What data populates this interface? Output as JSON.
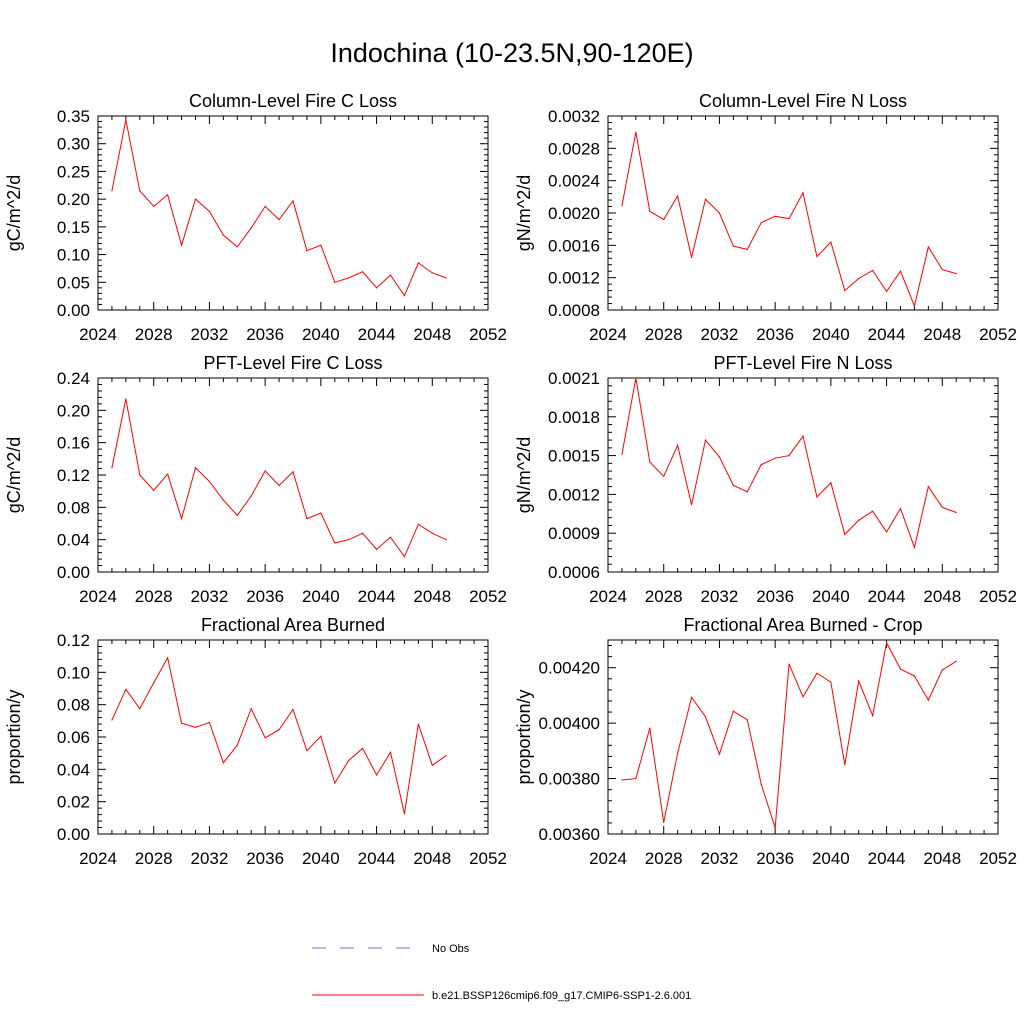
{
  "title": "Indochina (10-23.5N,90-120E)",
  "colors": {
    "model": "#ff0000",
    "obs": "#7777cc",
    "axis": "#000000"
  },
  "legend": {
    "obs_label": "No Obs",
    "model_label": "b.e21.BSSP126cmip6.f09_g17.CMIP6-SSP1-2.6.001"
  },
  "chart_data": [
    {
      "type": "line",
      "title": "Column-Level Fire C Loss",
      "xlabel": "",
      "ylabel": "gC/m^2/d",
      "xlim": [
        2024,
        2052
      ],
      "ylim": [
        0,
        0.35
      ],
      "x_ticks": [
        "2024",
        "2028",
        "2032",
        "2036",
        "2040",
        "2044",
        "2048",
        "2052"
      ],
      "y_ticks": [
        "0.00",
        "0.05",
        "0.10",
        "0.15",
        "0.20",
        "0.25",
        "0.30",
        "0.35"
      ],
      "y_tick_values": [
        0,
        0.05,
        0.1,
        0.15,
        0.2,
        0.25,
        0.3,
        0.35
      ],
      "x": [
        2025,
        2026,
        2027,
        2028,
        2029,
        2030,
        2031,
        2032,
        2033,
        2034,
        2035,
        2036,
        2037,
        2038,
        2039,
        2040,
        2041,
        2042,
        2043,
        2044,
        2045,
        2046,
        2047,
        2048,
        2049
      ],
      "series": [
        {
          "values": [
            0.215,
            0.343,
            0.215,
            0.187,
            0.208,
            0.117,
            0.2,
            0.178,
            0.135,
            0.114,
            0.148,
            0.187,
            0.163,
            0.197,
            0.107,
            0.117,
            0.05,
            0.058,
            0.069,
            0.04,
            0.063,
            0.026,
            0.085,
            0.067,
            0.058
          ]
        }
      ]
    },
    {
      "type": "line",
      "title": "Column-Level Fire N Loss",
      "xlabel": "",
      "ylabel": "gN/m^2/d",
      "xlim": [
        2024,
        2052
      ],
      "ylim": [
        0.0008,
        0.0032
      ],
      "x_ticks": [
        "2024",
        "2028",
        "2032",
        "2036",
        "2040",
        "2044",
        "2048",
        "2052"
      ],
      "y_ticks": [
        "0.0008",
        "0.0012",
        "0.0016",
        "0.0020",
        "0.0024",
        "0.0028",
        "0.0032"
      ],
      "y_tick_values": [
        0.0008,
        0.0012,
        0.0016,
        0.002,
        0.0024,
        0.0028,
        0.0032
      ],
      "x": [
        2025,
        2026,
        2027,
        2028,
        2029,
        2030,
        2031,
        2032,
        2033,
        2034,
        2035,
        2036,
        2037,
        2038,
        2039,
        2040,
        2041,
        2042,
        2043,
        2044,
        2045,
        2046,
        2047,
        2048,
        2049
      ],
      "series": [
        {
          "values": [
            0.00209,
            0.003,
            0.00202,
            0.00192,
            0.00221,
            0.00145,
            0.00217,
            0.002,
            0.00159,
            0.00155,
            0.00188,
            0.00196,
            0.00193,
            0.00225,
            0.00146,
            0.00164,
            0.00104,
            0.00119,
            0.00129,
            0.00103,
            0.00128,
            0.00085,
            0.00158,
            0.0013,
            0.00125
          ]
        }
      ]
    },
    {
      "type": "line",
      "title": "PFT-Level Fire C Loss",
      "xlabel": "",
      "ylabel": "gC/m^2/d",
      "xlim": [
        2024,
        2052
      ],
      "ylim": [
        0,
        0.24
      ],
      "x_ticks": [
        "2024",
        "2028",
        "2032",
        "2036",
        "2040",
        "2044",
        "2048",
        "2052"
      ],
      "y_ticks": [
        "0.00",
        "0.04",
        "0.08",
        "0.12",
        "0.16",
        "0.20",
        "0.24"
      ],
      "y_tick_values": [
        0,
        0.04,
        0.08,
        0.12,
        0.16,
        0.2,
        0.24
      ],
      "x": [
        2025,
        2026,
        2027,
        2028,
        2029,
        2030,
        2031,
        2032,
        2033,
        2034,
        2035,
        2036,
        2037,
        2038,
        2039,
        2040,
        2041,
        2042,
        2043,
        2044,
        2045,
        2046,
        2047,
        2048,
        2049
      ],
      "series": [
        {
          "values": [
            0.129,
            0.214,
            0.12,
            0.101,
            0.121,
            0.066,
            0.129,
            0.112,
            0.089,
            0.07,
            0.094,
            0.125,
            0.107,
            0.124,
            0.066,
            0.073,
            0.036,
            0.04,
            0.048,
            0.028,
            0.043,
            0.019,
            0.059,
            0.048,
            0.04
          ]
        }
      ]
    },
    {
      "type": "line",
      "title": "PFT-Level Fire N Loss",
      "xlabel": "",
      "ylabel": "gN/m^2/d",
      "xlim": [
        2024,
        2052
      ],
      "ylim": [
        0.0006,
        0.0021
      ],
      "x_ticks": [
        "2024",
        "2028",
        "2032",
        "2036",
        "2040",
        "2044",
        "2048",
        "2052"
      ],
      "y_ticks": [
        "0.0006",
        "0.0009",
        "0.0012",
        "0.0015",
        "0.0018",
        "0.0021"
      ],
      "y_tick_values": [
        0.0006,
        0.0009,
        0.0012,
        0.0015,
        0.0018,
        0.0021
      ],
      "x": [
        2025,
        2026,
        2027,
        2028,
        2029,
        2030,
        2031,
        2032,
        2033,
        2034,
        2035,
        2036,
        2037,
        2038,
        2039,
        2040,
        2041,
        2042,
        2043,
        2044,
        2045,
        2046,
        2047,
        2048,
        2049
      ],
      "series": [
        {
          "values": [
            0.00151,
            0.0021,
            0.00145,
            0.00134,
            0.00158,
            0.00112,
            0.00162,
            0.00149,
            0.00127,
            0.00122,
            0.00143,
            0.00148,
            0.0015,
            0.00165,
            0.00118,
            0.00129,
            0.00089,
            0.001,
            0.00107,
            0.00091,
            0.00109,
            0.00079,
            0.00126,
            0.0011,
            0.00106
          ]
        }
      ]
    },
    {
      "type": "line",
      "title": "Fractional Area Burned",
      "xlabel": "",
      "ylabel": "proportion/y",
      "xlim": [
        2024,
        2052
      ],
      "ylim": [
        0,
        0.12
      ],
      "x_ticks": [
        "2024",
        "2028",
        "2032",
        "2036",
        "2040",
        "2044",
        "2048",
        "2052"
      ],
      "y_ticks": [
        "0.00",
        "0.02",
        "0.04",
        "0.06",
        "0.08",
        "0.10",
        "0.12"
      ],
      "y_tick_values": [
        0,
        0.02,
        0.04,
        0.06,
        0.08,
        0.1,
        0.12
      ],
      "x": [
        2025,
        2026,
        2027,
        2028,
        2029,
        2030,
        2031,
        2032,
        2033,
        2034,
        2035,
        2036,
        2037,
        2038,
        2039,
        2040,
        2041,
        2042,
        2043,
        2044,
        2045,
        2046,
        2047,
        2048,
        2049
      ],
      "series": [
        {
          "values": [
            0.0705,
            0.0895,
            0.0775,
            0.0935,
            0.109,
            0.0685,
            0.066,
            0.069,
            0.044,
            0.055,
            0.0775,
            0.0595,
            0.0645,
            0.077,
            0.0515,
            0.0605,
            0.0315,
            0.0455,
            0.053,
            0.0365,
            0.0505,
            0.0125,
            0.068,
            0.0425,
            0.0485
          ]
        }
      ]
    },
    {
      "type": "line",
      "title": "Fractional Area Burned - Crop",
      "xlabel": "",
      "ylabel": "proportion/y",
      "xlim": [
        2024,
        2052
      ],
      "ylim": [
        0.0036,
        0.0043
      ],
      "x_ticks": [
        "2024",
        "2028",
        "2032",
        "2036",
        "2040",
        "2044",
        "2048",
        "2052"
      ],
      "y_ticks": [
        "0.00360",
        "0.00380",
        "0.00400",
        "0.00420"
      ],
      "y_tick_values": [
        0.0036,
        0.0038,
        0.004,
        0.0042
      ],
      "x": [
        2025,
        2026,
        2027,
        2028,
        2029,
        2030,
        2031,
        2032,
        2033,
        2034,
        2035,
        2036,
        2037,
        2038,
        2039,
        2040,
        2041,
        2042,
        2043,
        2044,
        2045,
        2046,
        2047,
        2048,
        2049
      ],
      "series": [
        {
          "values": [
            0.003795,
            0.0038,
            0.003982,
            0.003642,
            0.003892,
            0.004093,
            0.004023,
            0.003888,
            0.004043,
            0.004012,
            0.00378,
            0.003622,
            0.004213,
            0.004095,
            0.00418,
            0.004148,
            0.00385,
            0.004152,
            0.004027,
            0.00429,
            0.004195,
            0.00417,
            0.004083,
            0.004192,
            0.004223
          ]
        }
      ]
    }
  ]
}
